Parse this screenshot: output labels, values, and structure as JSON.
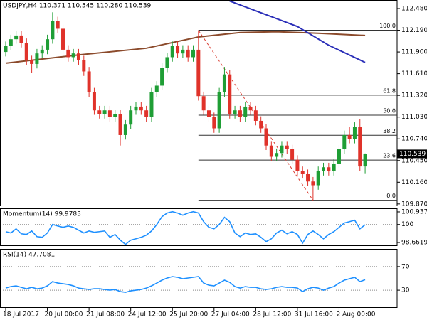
{
  "chart_data": [
    {
      "type": "candlestick",
      "title": "USDJPY,H4  110.371 110.545 110.280 110.539",
      "open": [
        111.9,
        111.98,
        112.07,
        112.12,
        112.02,
        111.79,
        111.74,
        111.88,
        111.93,
        112.07,
        112.31,
        112.21,
        111.93,
        111.83,
        111.88,
        111.79,
        111.64,
        111.36,
        111.12,
        111.07,
        111.12,
        111.03,
        111.07,
        110.79,
        110.93,
        111.12,
        111.17,
        111.12,
        111.03,
        111.36,
        111.45,
        111.69,
        111.83,
        111.98,
        111.88,
        111.93,
        111.83,
        111.93,
        111.31,
        111.12,
        111.03,
        110.88,
        111.36,
        111.6,
        111.07,
        111.12,
        111.03,
        111.17,
        111.12,
        110.98,
        110.88,
        110.65,
        110.5,
        110.55,
        110.65,
        110.6,
        110.46,
        110.31,
        110.27,
        110.17,
        110.12,
        110.31,
        110.36,
        110.31,
        110.41,
        110.6,
        110.79,
        110.74,
        110.9,
        110.371
      ],
      "high": [
        112.04,
        112.13,
        112.18,
        112.18,
        112.08,
        111.85,
        111.94,
        111.99,
        112.13,
        112.43,
        112.37,
        112.27,
        111.99,
        111.94,
        111.94,
        111.85,
        111.7,
        111.42,
        111.18,
        111.18,
        111.18,
        111.13,
        111.13,
        110.99,
        111.18,
        111.23,
        111.23,
        111.18,
        111.42,
        111.51,
        111.75,
        111.89,
        112.04,
        112.04,
        111.99,
        111.99,
        111.99,
        112.19,
        111.37,
        111.18,
        111.09,
        111.42,
        111.7,
        111.66,
        111.18,
        111.18,
        111.23,
        111.23,
        111.18,
        111.04,
        110.94,
        110.71,
        110.61,
        110.71,
        110.71,
        110.66,
        110.52,
        110.37,
        110.33,
        110.23,
        110.37,
        110.42,
        110.42,
        110.47,
        110.66,
        110.85,
        110.9,
        110.96,
        111.0,
        110.545
      ],
      "low": [
        111.84,
        111.92,
        112.01,
        111.96,
        111.73,
        111.62,
        111.68,
        111.82,
        111.87,
        112.01,
        112.15,
        111.87,
        111.77,
        111.77,
        111.73,
        111.58,
        111.3,
        111.06,
        111.01,
        111.01,
        110.97,
        110.97,
        110.65,
        110.73,
        110.87,
        111.06,
        111.06,
        110.97,
        110.97,
        111.3,
        111.39,
        111.63,
        111.77,
        111.82,
        111.82,
        111.77,
        111.77,
        111.25,
        111.06,
        110.97,
        110.82,
        110.82,
        111.3,
        111.01,
        111.01,
        110.97,
        110.97,
        111.06,
        110.92,
        110.82,
        110.59,
        110.44,
        110.44,
        110.49,
        110.54,
        110.4,
        110.25,
        110.21,
        110.11,
        109.92,
        110.06,
        110.25,
        110.25,
        110.25,
        110.35,
        110.54,
        110.68,
        110.68,
        110.31,
        110.28
      ],
      "close": [
        111.98,
        112.07,
        112.12,
        112.02,
        111.79,
        111.74,
        111.88,
        111.93,
        112.07,
        112.31,
        112.21,
        111.93,
        111.83,
        111.88,
        111.79,
        111.64,
        111.36,
        111.12,
        111.07,
        111.12,
        111.03,
        111.07,
        110.79,
        110.93,
        111.12,
        111.17,
        111.12,
        111.03,
        111.36,
        111.45,
        111.69,
        111.83,
        111.98,
        111.88,
        111.93,
        111.83,
        111.93,
        111.31,
        111.12,
        111.03,
        110.88,
        111.36,
        111.6,
        111.07,
        111.12,
        111.03,
        111.17,
        111.12,
        110.98,
        110.88,
        110.65,
        110.5,
        110.55,
        110.65,
        110.6,
        110.46,
        110.31,
        110.27,
        110.17,
        110.12,
        110.31,
        110.36,
        110.31,
        110.41,
        110.6,
        110.79,
        110.74,
        110.9,
        110.371,
        110.539
      ],
      "up_color": "#1f9e35",
      "down_color": "#e0322a",
      "ylim": [
        109.84,
        112.594
      ],
      "yticks": [
        {
          "value": 112.48,
          "label": "112.480"
        },
        {
          "value": 112.19,
          "label": "112.190"
        },
        {
          "value": 111.9,
          "label": "111.900"
        },
        {
          "value": 111.61,
          "label": "111.610"
        },
        {
          "value": 111.32,
          "label": "111.320"
        },
        {
          "value": 111.03,
          "label": "111.030"
        },
        {
          "value": 110.74,
          "label": "110.740"
        },
        {
          "value": 110.45,
          "label": "110.450"
        },
        {
          "value": 110.16,
          "label": "110.160"
        },
        {
          "value": 109.87,
          "label": "109.870"
        }
      ],
      "xticks": [
        {
          "value": 0,
          "label": "18 Jul 2017"
        },
        {
          "value": 8,
          "label": "20 Jul 00:00"
        },
        {
          "value": 16,
          "label": "21 Jul 08:00"
        },
        {
          "value": 24,
          "label": "24 Jul 12:00"
        },
        {
          "value": 32,
          "label": "25 Jul 20:00"
        },
        {
          "value": 40,
          "label": "27 Jul 04:00"
        },
        {
          "value": 48,
          "label": "28 Jul 12:00"
        },
        {
          "value": 56,
          "label": "31 Jul 16:00"
        },
        {
          "value": 64,
          "label": "2 Aug 00:00"
        }
      ],
      "last_price": 110.539,
      "series": [
        {
          "color": "#8b4a2b",
          "x": [
            0,
            14,
            27,
            37,
            45,
            52,
            60,
            69
          ],
          "values": [
            111.75,
            111.86,
            111.95,
            112.1,
            112.16,
            112.17,
            112.15,
            112.12
          ]
        },
        {
          "color": "#2b2fb8",
          "x": [
            43,
            48,
            56,
            62,
            69
          ],
          "values": [
            112.58,
            112.45,
            112.24,
            111.99,
            111.76
          ]
        }
      ],
      "fibonacci": {
        "color": "#d93b2f",
        "x": [
          37,
          59
        ],
        "values": [
          112.19,
          109.92
        ],
        "levels": [
          {
            "label": "100.0",
            "value": 112.19
          },
          {
            "label": "61.8",
            "value": 111.323
          },
          {
            "label": "50.0",
            "value": 111.055
          },
          {
            "label": "38.2",
            "value": 110.787
          },
          {
            "label": "23.6",
            "value": 110.456
          },
          {
            "label": "0.0",
            "value": 109.92
          }
        ]
      }
    },
    {
      "type": "line",
      "title": "Momentum(14) 99.9783",
      "color": "#1e90ff",
      "values": [
        99.47,
        99.37,
        99.68,
        99.31,
        99.26,
        99.52,
        99.1,
        99.05,
        99.37,
        100.0,
        99.89,
        99.79,
        99.89,
        99.79,
        99.58,
        99.37,
        99.52,
        99.42,
        99.47,
        99.52,
        99.05,
        99.26,
        98.84,
        98.52,
        98.84,
        98.94,
        99.05,
        99.21,
        99.52,
        100.0,
        100.58,
        100.85,
        100.95,
        100.85,
        100.69,
        100.85,
        100.95,
        100.85,
        100.21,
        99.79,
        99.68,
        100.0,
        100.53,
        100.21,
        99.37,
        99.1,
        99.37,
        99.26,
        99.31,
        99.05,
        98.73,
        98.94,
        99.37,
        99.58,
        99.31,
        99.47,
        99.26,
        98.62,
        99.26,
        99.52,
        99.26,
        98.94,
        99.26,
        99.47,
        99.79,
        100.11,
        100.21,
        100.32,
        99.68,
        99.98
      ],
      "ylim": [
        98.4,
        101.2
      ],
      "yticks": [
        100.9372,
        100,
        98.6619
      ],
      "levels": [
        100
      ]
    },
    {
      "type": "line",
      "title": "RSI(14) 47.7081",
      "color": "#1e90ff",
      "values": [
        33.6,
        36.1,
        37.3,
        34.8,
        32.4,
        34.8,
        32.4,
        33.6,
        37.3,
        44.5,
        42.1,
        40.9,
        39.7,
        37.3,
        33.6,
        32.4,
        31.2,
        32.4,
        32.4,
        31.2,
        30.0,
        31.2,
        27.6,
        26.4,
        28.8,
        30.0,
        31.2,
        33.6,
        37.3,
        42.1,
        47.0,
        50.6,
        53.0,
        51.8,
        49.4,
        50.6,
        51.8,
        53.0,
        42.1,
        38.5,
        37.3,
        42.1,
        47.0,
        43.3,
        36.1,
        33.6,
        36.1,
        34.8,
        34.8,
        32.4,
        31.2,
        32.4,
        34.8,
        36.1,
        34.8,
        34.8,
        33.6,
        27.6,
        32.4,
        34.8,
        33.6,
        30.0,
        33.6,
        36.1,
        42.1,
        47.0,
        49.4,
        51.8,
        44.5,
        47.71
      ],
      "ylim": [
        0,
        100
      ],
      "yticks": [
        70,
        30
      ],
      "levels": [
        70,
        30
      ]
    }
  ]
}
